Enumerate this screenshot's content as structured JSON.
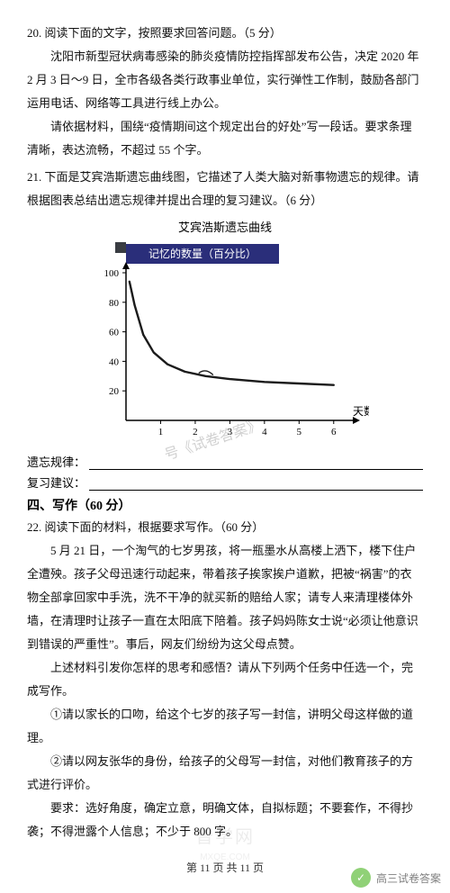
{
  "q20": {
    "head": "20. 阅读下面的文字，按照要求回答问题。（5 分）",
    "p1": "沈阳市新型冠状病毒感染的肺炎疫情防控指挥部发布公告，决定 2020 年 2 月 3 日～9 日，全市各级各类行政事业单位，实行弹性工作制，鼓励各部门运用电话、网络等工具进行线上办公。",
    "p2": "请依据材料，围绕“疫情期间这个规定出台的好处”写一段话。要求条理清晰，表达流畅，不超过 55 个字。"
  },
  "q21": {
    "head": "21. 下面是艾宾浩斯遗忘曲线图，它描述了人类大脑对新事物遗忘的规律。请根据图表总结出遗忘规律并提出合理的复习建议。（6 分）",
    "curve_title": "艾宾浩斯遗忘曲线",
    "chart": {
      "type": "line",
      "header_label": "记忆的数量（百分比）",
      "header_bg": "#2a2e7a",
      "header_fg": "#ffffff",
      "header_fontsize": 12,
      "header_corner_box": "#393c42",
      "background": "#ffffff",
      "axis_color": "#000000",
      "line_color": "#1b1b1b",
      "line_width": 2.4,
      "marker_curve_color": "#1b1b1b",
      "ylim": [
        0,
        100
      ],
      "yticks": [
        20,
        40,
        60,
        80,
        100
      ],
      "ytick_fontsize": 11,
      "xlim": [
        0,
        6.5
      ],
      "xticks": [
        1,
        2,
        3,
        4,
        5,
        6
      ],
      "xtick_fontsize": 11,
      "xlabel": "天数",
      "xlabel_fontsize": 12,
      "arrowheads": true,
      "points": [
        {
          "x": 0.1,
          "y": 94
        },
        {
          "x": 0.25,
          "y": 78
        },
        {
          "x": 0.5,
          "y": 58
        },
        {
          "x": 0.8,
          "y": 46
        },
        {
          "x": 1.2,
          "y": 38
        },
        {
          "x": 1.7,
          "y": 33
        },
        {
          "x": 2.3,
          "y": 30
        },
        {
          "x": 3.0,
          "y": 28
        },
        {
          "x": 4.0,
          "y": 26
        },
        {
          "x": 5.0,
          "y": 25
        },
        {
          "x": 6.0,
          "y": 24
        }
      ]
    },
    "blank1_label": "遗忘规律：",
    "blank2_label": "复习建议："
  },
  "section4": "四、写作（60 分）",
  "q22": {
    "head": "22. 阅读下面的材料，根据要求写作。（60 分）",
    "p1": "5 月 21 日，一个淘气的七岁男孩，将一瓶墨水从高楼上洒下，楼下住户全遭殃。孩子父母迅速行动起来，带着孩子挨家挨户道歉，把被“祸害”的衣物全部拿回家中手洗，洗不干净的就买新的赔给人家；请专人来清理楼体外墙，在清理时让孩子一直在太阳底下陪着。孩子妈妈陈女士说“必须让他意识到错误的严重性”。事后，网友们纷纷为这父母点赞。",
    "p2": "上述材料引发你怎样的思考和感悟？请从下列两个任务中任选一个，完成写作。",
    "opt1": "①请以家长的口吻，给这个七岁的孩子写一封信，讲明父母这样做的道理。",
    "opt2": "②请以网友张华的身份，给孩子的父母写一封信，对他们教育孩子的方式进行评价。",
    "req": "要求：选好角度，确定立意，明确文体，自拟标题；不要套作，不得抄袭；不得泄露个人信息；不少于 800 字。"
  },
  "footer": "第 11 页  共 11 页",
  "watermarks": {
    "chart_overlay": "号《试卷答案》",
    "faint_logo": "普学网",
    "faint_logo_sub": "MXQE.COM",
    "corner_text": "高三试卷答案"
  }
}
